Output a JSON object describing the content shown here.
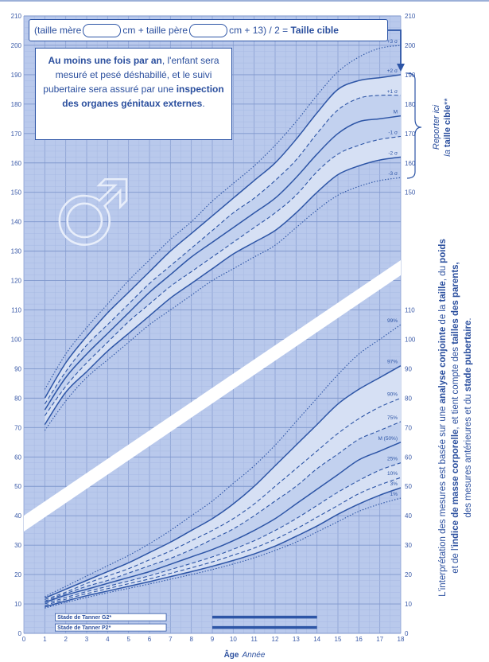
{
  "chart_data": {
    "type": "line",
    "xlim": [
      0,
      18
    ],
    "ylim": [
      0,
      210
    ],
    "x_ticks": [
      "0",
      "1",
      "2",
      "3",
      "4",
      "5",
      "6",
      "7",
      "8",
      "9",
      "10",
      "11",
      "12",
      "13",
      "14",
      "15",
      "16",
      "17",
      "18"
    ],
    "y_ticks_left": [
      "0",
      "10",
      "20",
      "30",
      "40",
      "50",
      "60",
      "70",
      "80",
      "90",
      "100",
      "110",
      "120",
      "130",
      "140",
      "150",
      "160",
      "170",
      "180",
      "190",
      "200",
      "210"
    ],
    "xlabel": "Âge",
    "xlabel_unit": "Année",
    "height_panel": {
      "y_ticks_right": [
        "150",
        "160",
        "170",
        "180",
        "190",
        "200",
        "210"
      ],
      "series": [
        {
          "name": "+3 σ",
          "style": "dotted",
          "x": [
            1,
            2,
            3,
            4,
            5,
            6,
            7,
            8,
            9,
            10,
            11,
            12,
            13,
            14,
            15,
            16,
            17,
            18
          ],
          "values": [
            83,
            95,
            104,
            112,
            120,
            127,
            134,
            140,
            147,
            153,
            159,
            166,
            174,
            183,
            191,
            196,
            199,
            200
          ]
        },
        {
          "name": "+2 σ",
          "style": "solid",
          "x": [
            1,
            2,
            3,
            4,
            5,
            6,
            7,
            8,
            9,
            10,
            11,
            12,
            13,
            14,
            15,
            16,
            17,
            18
          ],
          "values": [
            80,
            92,
            101,
            109,
            116,
            123,
            130,
            136,
            142,
            148,
            154,
            160,
            168,
            177,
            185,
            188,
            189,
            190
          ]
        },
        {
          "name": "+1 σ",
          "style": "dashed",
          "x": [
            1,
            2,
            3,
            4,
            5,
            6,
            7,
            8,
            9,
            10,
            11,
            12,
            13,
            14,
            15,
            16,
            17,
            18
          ],
          "values": [
            78,
            89,
            98,
            105,
            112,
            119,
            125,
            131,
            137,
            143,
            148,
            154,
            161,
            170,
            178,
            182,
            183,
            183
          ]
        },
        {
          "name": "M",
          "style": "solid",
          "x": [
            1,
            2,
            3,
            4,
            5,
            6,
            7,
            8,
            9,
            10,
            11,
            12,
            13,
            14,
            15,
            16,
            17,
            18
          ],
          "values": [
            76,
            87,
            95,
            102,
            109,
            116,
            122,
            128,
            133,
            138,
            143,
            148,
            155,
            163,
            170,
            174,
            175,
            176
          ]
        },
        {
          "name": "-1 σ",
          "style": "dashed",
          "x": [
            1,
            2,
            3,
            4,
            5,
            6,
            7,
            8,
            9,
            10,
            11,
            12,
            13,
            14,
            15,
            16,
            17,
            18
          ],
          "values": [
            74,
            84,
            92,
            99,
            106,
            112,
            118,
            123,
            128,
            133,
            138,
            143,
            149,
            157,
            163,
            166,
            168,
            169
          ]
        },
        {
          "name": "-2 σ",
          "style": "solid",
          "x": [
            1,
            2,
            3,
            4,
            5,
            6,
            7,
            8,
            9,
            10,
            11,
            12,
            13,
            14,
            15,
            16,
            17,
            18
          ],
          "values": [
            71,
            82,
            89,
            96,
            102,
            108,
            114,
            119,
            124,
            129,
            133,
            137,
            143,
            150,
            156,
            159,
            161,
            162
          ]
        },
        {
          "name": "-3 σ",
          "style": "dotted",
          "x": [
            1,
            2,
            3,
            4,
            5,
            6,
            7,
            8,
            9,
            10,
            11,
            12,
            13,
            14,
            15,
            16,
            17,
            18
          ],
          "values": [
            69,
            79,
            87,
            93,
            99,
            105,
            110,
            115,
            120,
            124,
            128,
            132,
            138,
            144,
            149,
            152,
            154,
            155
          ]
        }
      ]
    },
    "weight_panel": {
      "y_ticks_right": [
        "0",
        "10",
        "20",
        "30",
        "40",
        "50",
        "60",
        "70",
        "80",
        "90",
        "100",
        "110"
      ],
      "series": [
        {
          "name": "99%",
          "style": "dotted",
          "x": [
            1,
            2,
            3,
            4,
            5,
            6,
            7,
            8,
            9,
            10,
            11,
            12,
            13,
            14,
            15,
            16,
            17,
            18
          ],
          "values": [
            12.5,
            16,
            19.5,
            23,
            26.5,
            30.5,
            35,
            40,
            45,
            51,
            57,
            64,
            72,
            80,
            88,
            95,
            100,
            105
          ]
        },
        {
          "name": "97%",
          "style": "solid",
          "x": [
            1,
            2,
            3,
            4,
            5,
            6,
            7,
            8,
            9,
            10,
            11,
            12,
            13,
            14,
            15,
            16,
            17,
            18
          ],
          "values": [
            12,
            15,
            18,
            21,
            24,
            27.5,
            31,
            35,
            39,
            44,
            50,
            57,
            64,
            71,
            78,
            83,
            87,
            91
          ]
        },
        {
          "name": "90%",
          "style": "dashed",
          "x": [
            1,
            2,
            3,
            4,
            5,
            6,
            7,
            8,
            9,
            10,
            11,
            12,
            13,
            14,
            15,
            16,
            17,
            18
          ],
          "values": [
            11.5,
            14,
            17,
            19.5,
            22,
            25,
            28,
            31.5,
            35,
            39,
            44,
            50,
            56,
            62,
            68,
            73,
            77,
            80
          ]
        },
        {
          "name": "75%",
          "style": "dashed",
          "x": [
            1,
            2,
            3,
            4,
            5,
            6,
            7,
            8,
            9,
            10,
            11,
            12,
            13,
            14,
            15,
            16,
            17,
            18
          ],
          "values": [
            11,
            13.5,
            16,
            18,
            20.5,
            23,
            25.5,
            28.5,
            32,
            35.5,
            40,
            45,
            50,
            56,
            61,
            66,
            69,
            72
          ]
        },
        {
          "name": "M (50%)",
          "style": "solid",
          "x": [
            1,
            2,
            3,
            4,
            5,
            6,
            7,
            8,
            9,
            10,
            11,
            12,
            13,
            14,
            15,
            16,
            17,
            18
          ],
          "values": [
            10.5,
            13,
            15,
            17,
            19,
            21,
            23.5,
            26,
            28.5,
            31.5,
            35,
            39,
            44,
            49,
            54,
            59,
            62,
            65
          ]
        },
        {
          "name": "25%",
          "style": "dashed",
          "x": [
            1,
            2,
            3,
            4,
            5,
            6,
            7,
            8,
            9,
            10,
            11,
            12,
            13,
            14,
            15,
            16,
            17,
            18
          ],
          "values": [
            10,
            12.2,
            14.2,
            16,
            17.8,
            19.6,
            21.7,
            23.8,
            26,
            28.6,
            31.5,
            35,
            39,
            43.5,
            48,
            52,
            55.5,
            58
          ]
        },
        {
          "name": "10%",
          "style": "dashed",
          "x": [
            1,
            2,
            3,
            4,
            5,
            6,
            7,
            8,
            9,
            10,
            11,
            12,
            13,
            14,
            15,
            16,
            17,
            18
          ],
          "values": [
            9.5,
            11.6,
            13.5,
            15.2,
            16.9,
            18.5,
            20.4,
            22.3,
            24.3,
            26.6,
            29,
            32,
            35.5,
            39.5,
            43.5,
            47.5,
            50.5,
            53
          ]
        },
        {
          "name": "3%",
          "style": "solid",
          "x": [
            1,
            2,
            3,
            4,
            5,
            6,
            7,
            8,
            9,
            10,
            11,
            12,
            13,
            14,
            15,
            16,
            17,
            18
          ],
          "values": [
            9,
            11,
            12.8,
            14.4,
            16,
            17.6,
            19.3,
            21,
            22.8,
            24.8,
            27,
            29.7,
            33,
            36.5,
            40.5,
            44,
            47,
            49.5
          ]
        },
        {
          "name": "1%",
          "style": "dotted",
          "x": [
            1,
            2,
            3,
            4,
            5,
            6,
            7,
            8,
            9,
            10,
            11,
            12,
            13,
            14,
            15,
            16,
            17,
            18
          ],
          "values": [
            8.6,
            10.5,
            12.2,
            13.8,
            15.3,
            16.8,
            18.4,
            20,
            21.7,
            23.6,
            25.7,
            28.2,
            31,
            34.5,
            38,
            41.5,
            44,
            46
          ]
        }
      ]
    },
    "tanner_bars": [
      {
        "label": "Stade de Tanner G2*",
        "start": 9,
        "end": 14
      },
      {
        "label": "Stade de Tanner P2*",
        "start": 9,
        "end": 14
      }
    ],
    "symbol": "♂"
  },
  "formula": {
    "part1": "(taille mère",
    "part2": "cm + taille père",
    "part3": "cm + 13) / 2 =",
    "bold": "Taille cible"
  },
  "note": {
    "b1": "Au moins une fois par an",
    "t1": ", l'enfant sera mesuré et pesé déshabillé, et le suivi pubertaire sera assuré par une ",
    "b2": "inspection des organes génitaux externes",
    "t2": "."
  },
  "reporter": {
    "line1": "Reporter ici",
    "line2_prefix": "la ",
    "line2_bold": "taille cible",
    "line2_suffix": "**"
  },
  "interpretation": {
    "l1_a": "L'interprétation des mesures est basée sur une ",
    "l1_b": "analyse conjointe",
    "l1_c": " de la ",
    "l1_d": "taille",
    "l1_e": ", du ",
    "l1_f": "poids",
    "l2_a": "et de l'",
    "l2_b": "indice de masse corporelle",
    "l2_c": ", et tient compte des ",
    "l2_d": "tailles des parents,",
    "l3_a": "des mesures antérieures et du ",
    "l3_b": "stade pubertaire",
    "l3_c": "."
  },
  "colors": {
    "grid_bg": "#b9c9ec",
    "line": "#2d55a6",
    "accent": "#2b4f9e"
  }
}
